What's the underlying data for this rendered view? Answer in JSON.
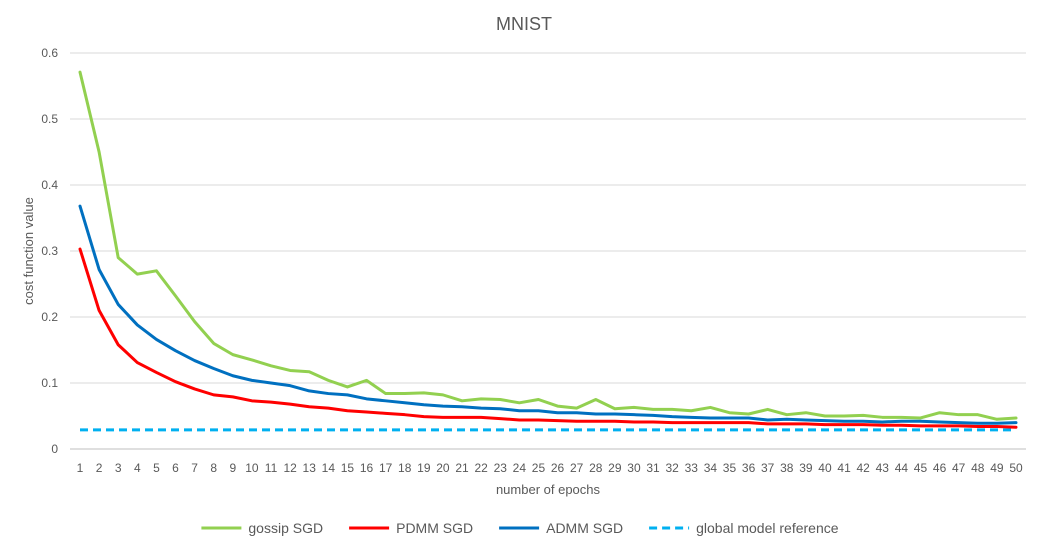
{
  "chart_data": {
    "type": "line",
    "title": "MNIST",
    "xlabel": "number  of epochs",
    "ylabel": "cost function value",
    "ylim": [
      0,
      0.6
    ],
    "yticks": [
      0,
      0.1,
      0.2,
      0.3,
      0.4,
      0.5,
      0.6
    ],
    "ytick_labels": [
      "0",
      "0.1",
      "0.2",
      "0.3",
      "0.4",
      "0.5",
      "0.6"
    ],
    "x": [
      1,
      2,
      3,
      4,
      5,
      6,
      7,
      8,
      9,
      10,
      11,
      12,
      13,
      14,
      15,
      16,
      17,
      18,
      19,
      20,
      21,
      22,
      23,
      24,
      25,
      26,
      27,
      28,
      29,
      30,
      31,
      32,
      33,
      34,
      35,
      36,
      37,
      38,
      39,
      40,
      41,
      42,
      43,
      44,
      45,
      46,
      47,
      48,
      49,
      50
    ],
    "grid": true,
    "legend_position": "bottom",
    "series": [
      {
        "name": "gossip SGD",
        "color": "#92d050",
        "style": "solid",
        "values": [
          0.571,
          0.45,
          0.29,
          0.265,
          0.27,
          0.232,
          0.193,
          0.16,
          0.143,
          0.135,
          0.126,
          0.119,
          0.117,
          0.104,
          0.094,
          0.104,
          0.084,
          0.084,
          0.085,
          0.082,
          0.073,
          0.076,
          0.075,
          0.07,
          0.075,
          0.065,
          0.062,
          0.075,
          0.061,
          0.063,
          0.06,
          0.06,
          0.058,
          0.063,
          0.055,
          0.053,
          0.06,
          0.052,
          0.055,
          0.05,
          0.05,
          0.051,
          0.048,
          0.048,
          0.047,
          0.055,
          0.052,
          0.052,
          0.045,
          0.047
        ]
      },
      {
        "name": "PDMM SGD",
        "color": "#ff0000",
        "style": "solid",
        "values": [
          0.303,
          0.21,
          0.158,
          0.131,
          0.116,
          0.102,
          0.091,
          0.082,
          0.079,
          0.073,
          0.071,
          0.068,
          0.064,
          0.062,
          0.058,
          0.056,
          0.054,
          0.052,
          0.049,
          0.048,
          0.048,
          0.048,
          0.046,
          0.044,
          0.044,
          0.043,
          0.042,
          0.042,
          0.042,
          0.041,
          0.041,
          0.04,
          0.04,
          0.04,
          0.04,
          0.04,
          0.038,
          0.038,
          0.038,
          0.037,
          0.037,
          0.037,
          0.036,
          0.036,
          0.035,
          0.035,
          0.035,
          0.034,
          0.034,
          0.033
        ]
      },
      {
        "name": "ADMM SGD",
        "color": "#0070c0",
        "style": "solid",
        "values": [
          0.368,
          0.272,
          0.219,
          0.188,
          0.166,
          0.149,
          0.134,
          0.122,
          0.111,
          0.104,
          0.1,
          0.096,
          0.088,
          0.084,
          0.082,
          0.076,
          0.073,
          0.07,
          0.067,
          0.065,
          0.064,
          0.062,
          0.061,
          0.058,
          0.058,
          0.055,
          0.055,
          0.053,
          0.053,
          0.052,
          0.051,
          0.049,
          0.048,
          0.047,
          0.047,
          0.047,
          0.044,
          0.045,
          0.044,
          0.043,
          0.042,
          0.042,
          0.041,
          0.042,
          0.042,
          0.041,
          0.04,
          0.039,
          0.039,
          0.04
        ]
      },
      {
        "name": "global model reference",
        "color": "#00b0f0",
        "style": "dashed",
        "values": [
          0.029,
          0.029,
          0.029,
          0.029,
          0.029,
          0.029,
          0.029,
          0.029,
          0.029,
          0.029,
          0.029,
          0.029,
          0.029,
          0.029,
          0.029,
          0.029,
          0.029,
          0.029,
          0.029,
          0.029,
          0.029,
          0.029,
          0.029,
          0.029,
          0.029,
          0.029,
          0.029,
          0.029,
          0.029,
          0.029,
          0.029,
          0.029,
          0.029,
          0.029,
          0.029,
          0.029,
          0.029,
          0.029,
          0.029,
          0.029,
          0.029,
          0.029,
          0.029,
          0.029,
          0.029,
          0.029,
          0.029,
          0.029,
          0.029,
          0.029
        ]
      }
    ]
  }
}
